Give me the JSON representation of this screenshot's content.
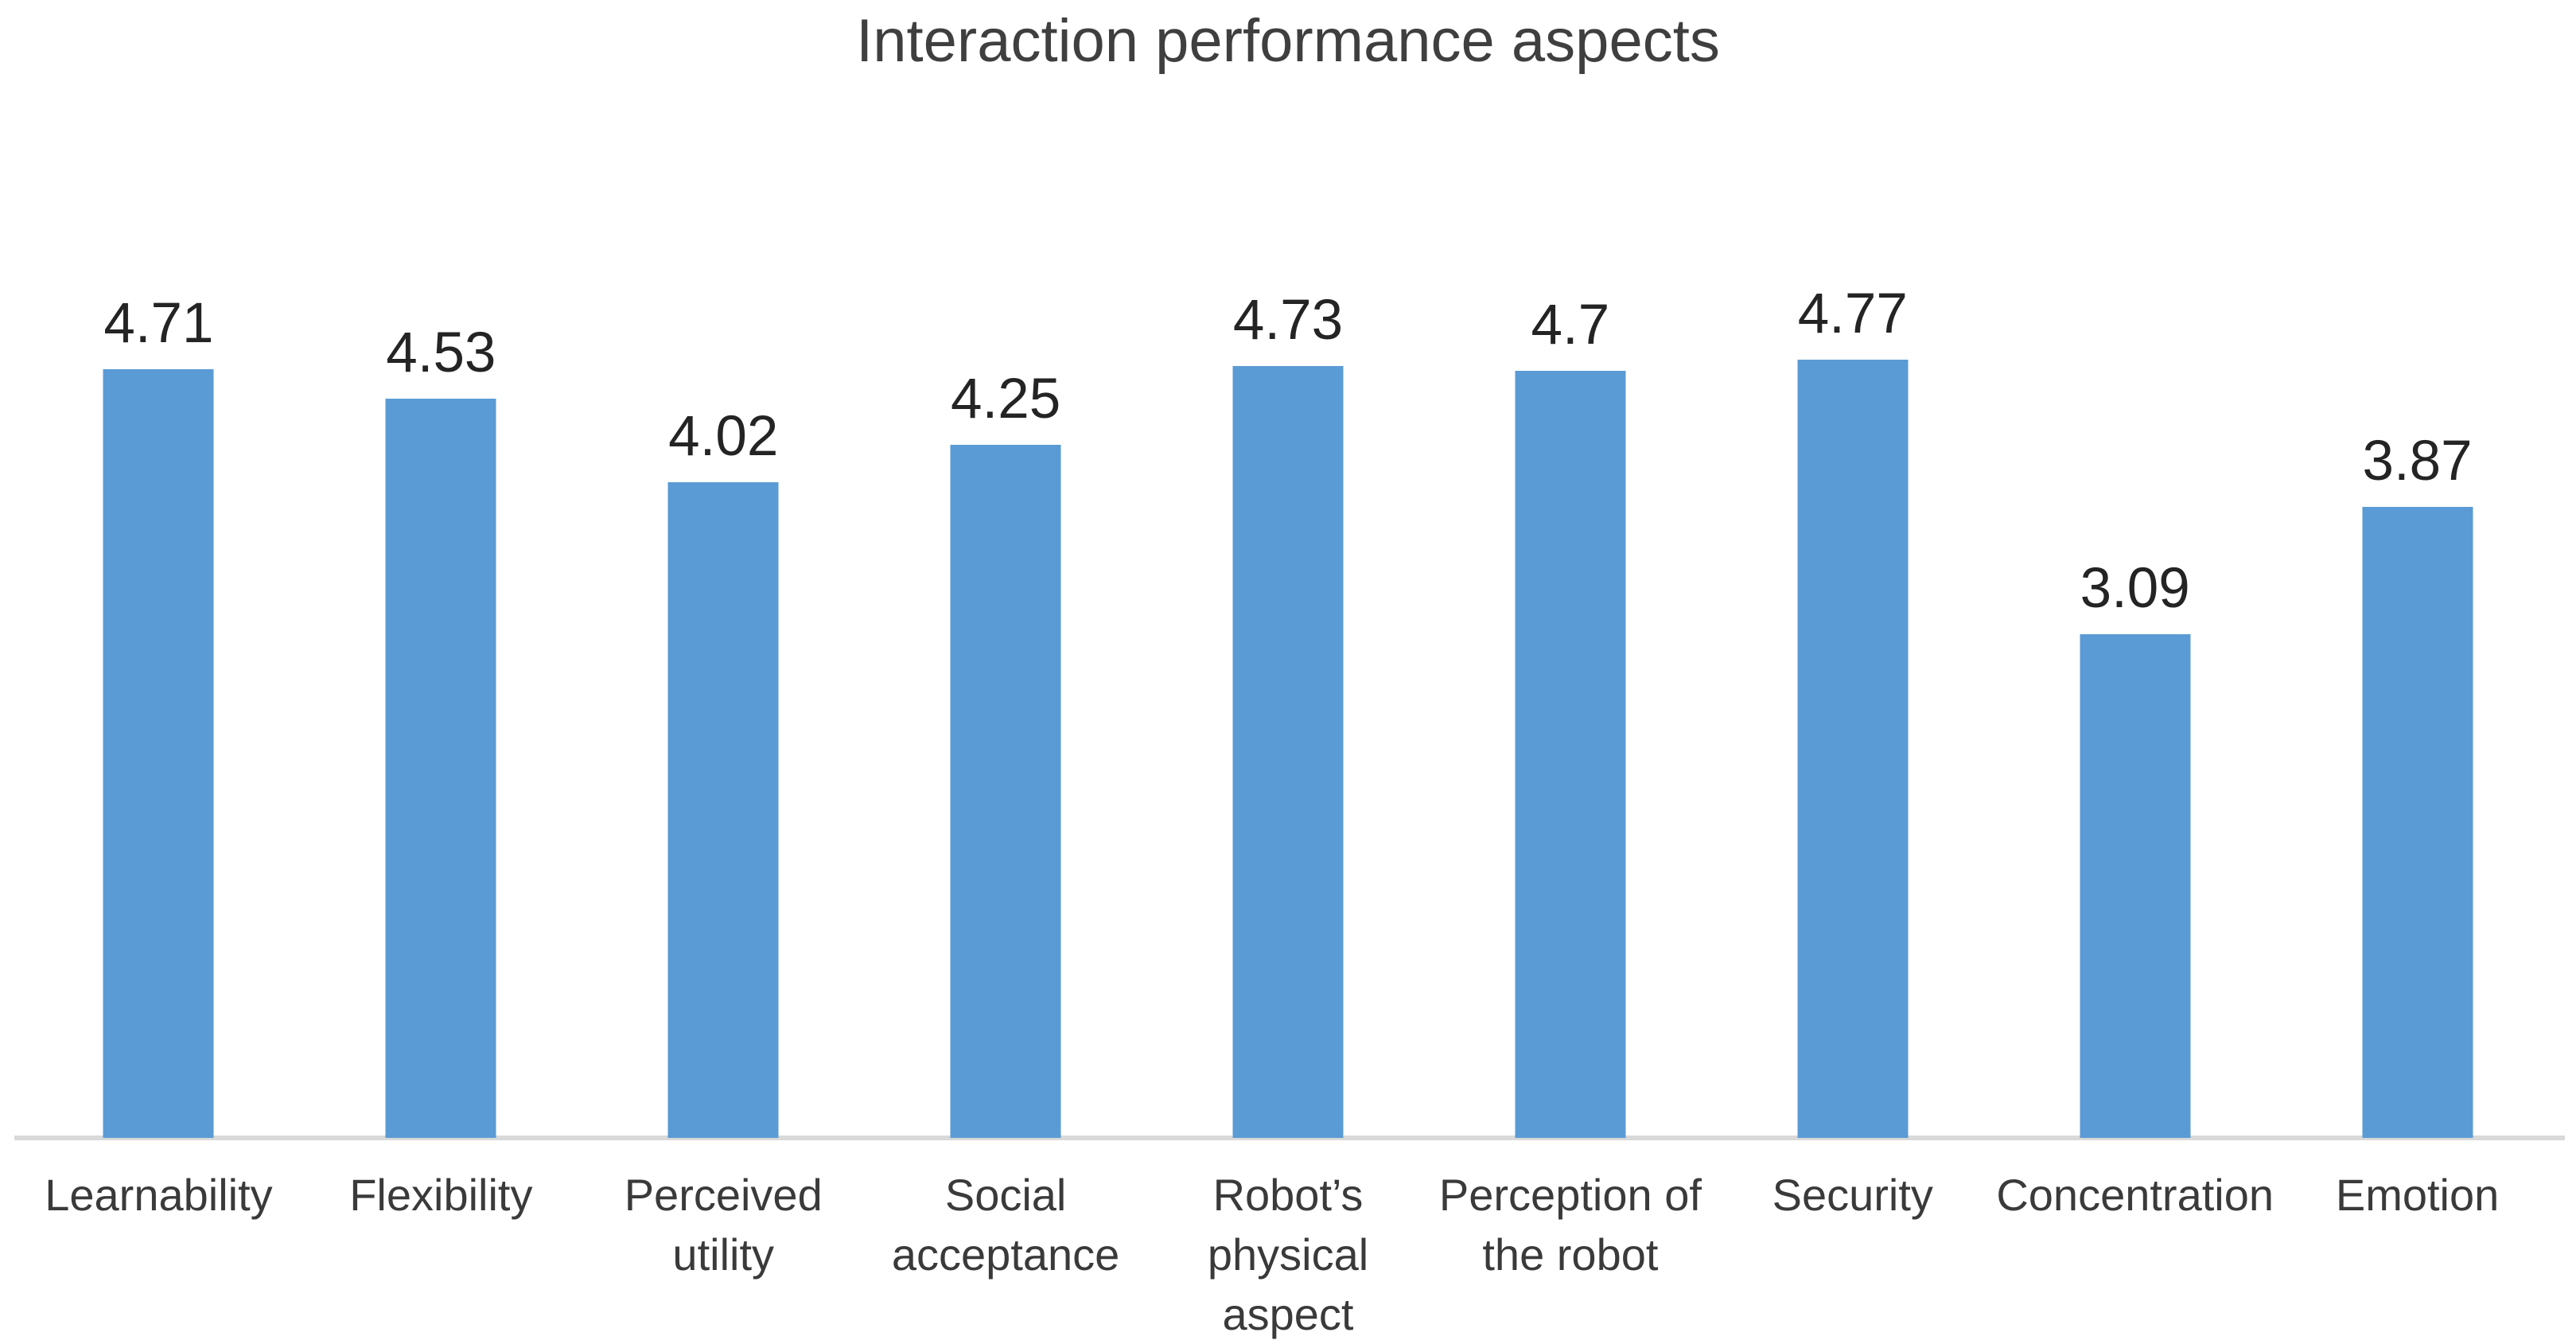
{
  "chart_data": {
    "type": "bar",
    "title": "Interaction performance aspects",
    "categories": [
      "Learnability",
      "Flexibility",
      "Perceived utility",
      "Social acceptance",
      "Robot’s physical aspect",
      "Perception of the robot",
      "Security",
      "Concentration",
      "Emotion"
    ],
    "values": [
      4.71,
      4.53,
      4.02,
      4.25,
      4.73,
      4.7,
      4.77,
      3.09,
      3.87
    ],
    "xlabel": "",
    "ylabel": "",
    "ylim": [
      0,
      5
    ],
    "grid": false,
    "legend_position": "none",
    "data_label_position": "outside-end",
    "bar_color": "#5b9bd5",
    "axis_line_color": "#d9d9d9",
    "title_color": "#3f3f3f",
    "label_color": "#242424",
    "category_label_color": "#3a3a3a"
  }
}
